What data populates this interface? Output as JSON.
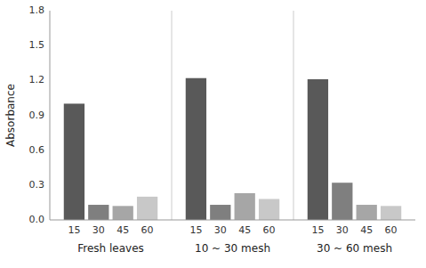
{
  "chart_data": {
    "type": "bar",
    "categories": [
      "Fresh leaves",
      "10 ~ 30 mesh",
      "30 ~ 60 mesh"
    ],
    "series": [
      {
        "name": "15",
        "color": "#595959",
        "values": [
          1.0,
          1.22,
          1.21
        ]
      },
      {
        "name": "30",
        "color": "#7f7f7f",
        "values": [
          0.13,
          0.13,
          0.32
        ]
      },
      {
        "name": "45",
        "color": "#a6a6a6",
        "values": [
          0.12,
          0.23,
          0.13
        ]
      },
      {
        "name": "60",
        "color": "#c8c8c8",
        "values": [
          0.2,
          0.18,
          0.12
        ]
      }
    ],
    "ylabel": "Absorbance",
    "ylim": [
      0,
      1.8
    ],
    "yticks": [
      {
        "value": 0,
        "label": "0.0"
      },
      0.3,
      0.6,
      0.9,
      1.2,
      1.5,
      1.8
    ],
    "grid": false
  }
}
